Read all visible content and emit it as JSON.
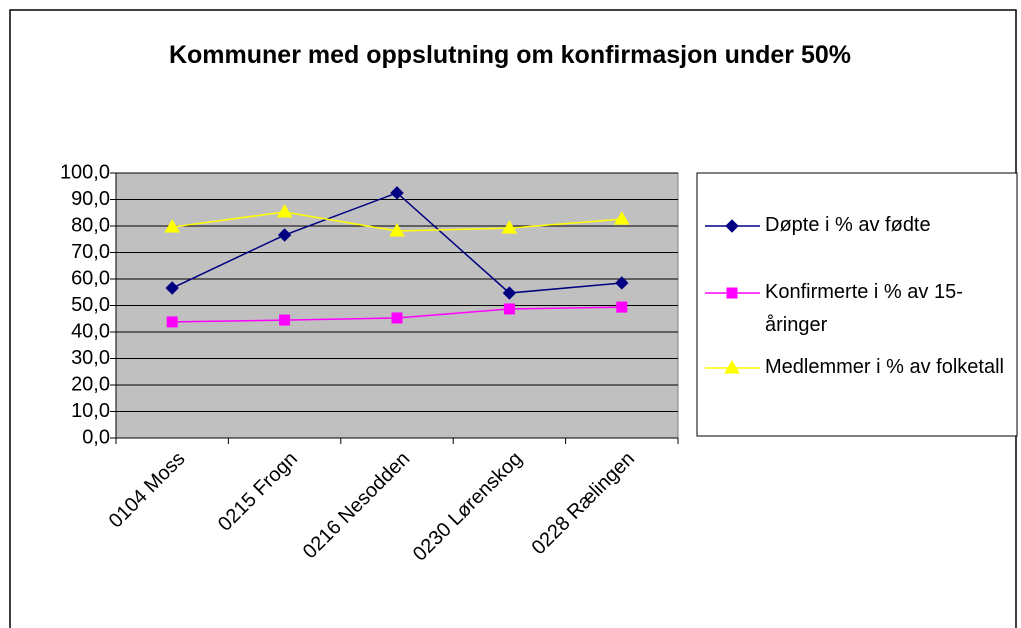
{
  "chart_data": {
    "type": "line",
    "title": "Kommuner med oppslutning om konfirmasjon under 50%",
    "categories": [
      "0104 Moss",
      "0215 Frogn",
      "0216 Nesodden",
      "0230 Lørenskog",
      "0228 Rælingen"
    ],
    "series": [
      {
        "name": "Døpte i % av fødte",
        "color": "#000080",
        "marker": "diamond",
        "values": [
          56.6,
          76.6,
          92.5,
          54.7,
          58.5
        ]
      },
      {
        "name": "Konfirmerte i % av 15-åringer",
        "color": "#ff00ff",
        "marker": "square",
        "values": [
          43.8,
          44.5,
          45.3,
          48.7,
          49.4
        ]
      },
      {
        "name": "Medlemmer i % av folketall",
        "color": "#ffff00",
        "marker": "triangle",
        "values": [
          79.6,
          85.3,
          78.1,
          79.2,
          82.6
        ]
      }
    ],
    "ylim": [
      0,
      100
    ],
    "yticks": [
      {
        "value": 0,
        "label": "0,0"
      },
      {
        "value": 10,
        "label": "10,0"
      },
      {
        "value": 20,
        "label": "20,0"
      },
      {
        "value": 30,
        "label": "30,0"
      },
      {
        "value": 40,
        "label": "40,0"
      },
      {
        "value": 50,
        "label": "50,0"
      },
      {
        "value": 60,
        "label": "60,0"
      },
      {
        "value": 70,
        "label": "70,0"
      },
      {
        "value": 80,
        "label": "80,0"
      },
      {
        "value": 90,
        "label": "90,0"
      },
      {
        "value": 100,
        "label": "100,0"
      }
    ],
    "grid": true,
    "legend": "right"
  }
}
